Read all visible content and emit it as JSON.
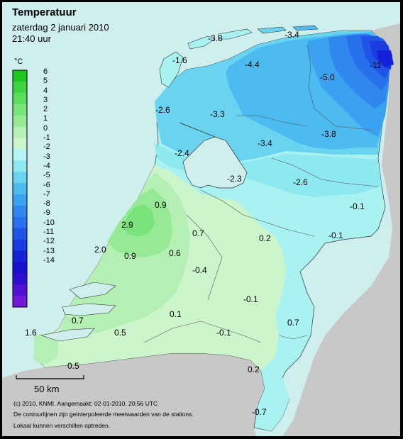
{
  "header": {
    "title": "Temperatuur",
    "date": "zaterdag 2 januari 2010",
    "time": "21:40 uur"
  },
  "legend": {
    "unit": "°C",
    "levels": [
      "6",
      "5",
      "4",
      "3",
      "2",
      "1",
      "0",
      "-1",
      "-2",
      "-3",
      "-4",
      "-5",
      "-6",
      "-7",
      "-8",
      "-9",
      "-10",
      "-11",
      "-12",
      "-13",
      "-14"
    ],
    "colors": [
      "#1ec81e",
      "#3ed23e",
      "#5cdc5c",
      "#7ae47a",
      "#96ea96",
      "#b4f0b4",
      "#ccf5cc",
      "#b4f4f4",
      "#8ee8f0",
      "#6ad4f0",
      "#4cbcf0",
      "#3aa2f0",
      "#3088ee",
      "#2870ec",
      "#2054e6",
      "#1a3ce0",
      "#1422d8",
      "#1a10d0",
      "#3010d0",
      "#5014d0",
      "#7018d8"
    ]
  },
  "map": {
    "labels": [
      {
        "text": "-3.8"
      },
      {
        "text": "-3.4"
      },
      {
        "text": "-1.6"
      },
      {
        "text": "-4.4"
      },
      {
        "text": "-11"
      },
      {
        "text": "-5.0"
      },
      {
        "text": "-2.6"
      },
      {
        "text": "-3.3"
      },
      {
        "text": "-3.8"
      },
      {
        "text": "-3.4"
      },
      {
        "text": "-2.4"
      },
      {
        "text": "-2.3"
      },
      {
        "text": "-2.6"
      },
      {
        "text": "-0.1"
      },
      {
        "text": "-0.1"
      },
      {
        "text": "0.9"
      },
      {
        "text": "2.9"
      },
      {
        "text": "0.7"
      },
      {
        "text": "0.2"
      },
      {
        "text": "2.0"
      },
      {
        "text": "0.9"
      },
      {
        "text": "0.6"
      },
      {
        "text": "-0.4"
      },
      {
        "text": "-0.1"
      },
      {
        "text": "0.7"
      },
      {
        "text": "0.1"
      },
      {
        "text": "0.7"
      },
      {
        "text": "-0.1"
      },
      {
        "text": "1.6"
      },
      {
        "text": "0.5"
      },
      {
        "text": "0.5"
      },
      {
        "text": "0.2"
      },
      {
        "text": "-0.7"
      }
    ]
  },
  "scale": {
    "label": "50 km"
  },
  "footer": {
    "line1": "(c) 2010, KNMI. Aangemaakt: 02-01-2010, 20:56 UTC",
    "line2": "De contourlijnen zijn geinterpoleerde meetwaarden van de stations.",
    "line3": "Lokaal kunnen verschillen optreden."
  }
}
